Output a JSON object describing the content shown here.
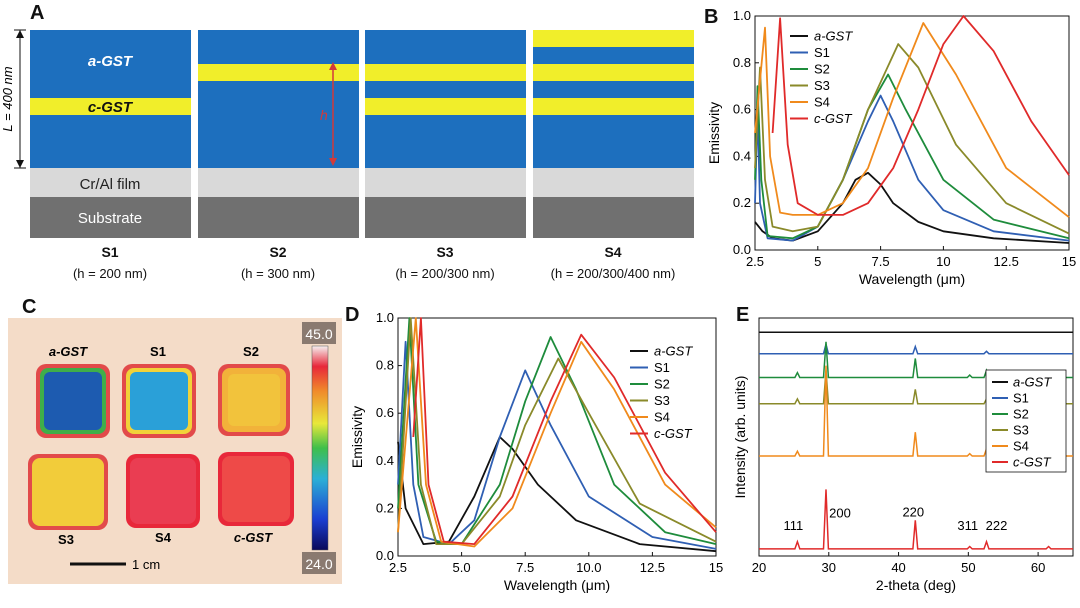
{
  "panels": {
    "a": "A",
    "b": "B",
    "c": "C",
    "d": "D",
    "e": "E"
  },
  "panel_a": {
    "layer_labels": {
      "a_gst": "a-GST",
      "c_gst": "c-GST",
      "film": "Cr/Al film",
      "substrate": "Substrate"
    },
    "thickness_label": "L = 400 nm",
    "h_label": "h",
    "colors": {
      "gst_a": "#1d6fbe",
      "gst_c": "#f1ee2a",
      "film": "#d9d9d9",
      "substrate": "#707070"
    },
    "samples": [
      {
        "name": "S1",
        "h": "(h = 200 nm)"
      },
      {
        "name": "S2",
        "h": "(h = 300 nm)"
      },
      {
        "name": "S3",
        "h": "(h = 200/300 nm)"
      },
      {
        "name": "S4",
        "h": "(h = 200/300/400 nm)"
      }
    ]
  },
  "panel_c": {
    "labels": [
      "a-GST",
      "S1",
      "S2",
      "S3",
      "S4",
      "c-GST"
    ],
    "scale_max": "45.0",
    "scale_min": "24.0",
    "scalebar": "1 cm"
  },
  "chart_data": [
    {
      "id": "B",
      "type": "line",
      "xlabel": "Wavelength (μm)",
      "ylabel": "Emissivity",
      "xlim": [
        2.5,
        15
      ],
      "ylim": [
        0,
        1
      ],
      "xticks": [
        "2.5",
        "5",
        "7.5",
        "10",
        "12.5",
        "15"
      ],
      "yticks": [
        "0.0",
        "0.2",
        "0.4",
        "0.6",
        "0.8",
        "1.0"
      ],
      "legend_position": "top-right",
      "series": [
        {
          "name": "a-GST",
          "color": "#111111",
          "points": [
            [
              2.5,
              0.12
            ],
            [
              2.8,
              0.08
            ],
            [
              3.2,
              0.05
            ],
            [
              4,
              0.04
            ],
            [
              5,
              0.08
            ],
            [
              6,
              0.2
            ],
            [
              6.5,
              0.3
            ],
            [
              7,
              0.33
            ],
            [
              7.5,
              0.28
            ],
            [
              8,
              0.2
            ],
            [
              9,
              0.12
            ],
            [
              10,
              0.08
            ],
            [
              12,
              0.05
            ],
            [
              15,
              0.03
            ]
          ]
        },
        {
          "name": "S1",
          "color": "#2f5fb3",
          "points": [
            [
              2.5,
              0.2
            ],
            [
              2.6,
              0.6
            ],
            [
              2.7,
              0.2
            ],
            [
              3,
              0.05
            ],
            [
              4,
              0.04
            ],
            [
              5,
              0.1
            ],
            [
              6,
              0.3
            ],
            [
              7,
              0.55
            ],
            [
              7.5,
              0.66
            ],
            [
              8,
              0.55
            ],
            [
              9,
              0.3
            ],
            [
              10,
              0.17
            ],
            [
              12,
              0.08
            ],
            [
              15,
              0.04
            ]
          ]
        },
        {
          "name": "S2",
          "color": "#1e8c3c",
          "points": [
            [
              2.5,
              0.3
            ],
            [
              2.6,
              0.7
            ],
            [
              2.75,
              0.3
            ],
            [
              3,
              0.06
            ],
            [
              4,
              0.05
            ],
            [
              5,
              0.1
            ],
            [
              6,
              0.3
            ],
            [
              7,
              0.6
            ],
            [
              7.8,
              0.75
            ],
            [
              8.5,
              0.6
            ],
            [
              10,
              0.3
            ],
            [
              12,
              0.13
            ],
            [
              15,
              0.05
            ]
          ]
        },
        {
          "name": "S3",
          "color": "#8a8a2a",
          "points": [
            [
              2.5,
              0.35
            ],
            [
              2.7,
              0.78
            ],
            [
              2.9,
              0.3
            ],
            [
              3.2,
              0.1
            ],
            [
              4,
              0.08
            ],
            [
              5,
              0.1
            ],
            [
              6,
              0.3
            ],
            [
              7,
              0.6
            ],
            [
              8.2,
              0.88
            ],
            [
              9,
              0.78
            ],
            [
              10.5,
              0.45
            ],
            [
              12.5,
              0.2
            ],
            [
              15,
              0.07
            ]
          ]
        },
        {
          "name": "S4",
          "color": "#f08a1c",
          "points": [
            [
              2.5,
              0.5
            ],
            [
              2.9,
              0.95
            ],
            [
              3.1,
              0.4
            ],
            [
              3.5,
              0.16
            ],
            [
              4,
              0.15
            ],
            [
              5,
              0.15
            ],
            [
              6,
              0.2
            ],
            [
              7,
              0.35
            ],
            [
              8,
              0.65
            ],
            [
              9.2,
              0.97
            ],
            [
              10.5,
              0.75
            ],
            [
              12.5,
              0.35
            ],
            [
              15,
              0.14
            ]
          ]
        },
        {
          "name": "c-GST",
          "color": "#e02a2a",
          "points": [
            [
              3.2,
              0.5
            ],
            [
              3.5,
              0.99
            ],
            [
              3.8,
              0.45
            ],
            [
              4.2,
              0.2
            ],
            [
              5,
              0.15
            ],
            [
              6,
              0.15
            ],
            [
              7,
              0.2
            ],
            [
              8,
              0.35
            ],
            [
              9,
              0.6
            ],
            [
              10,
              0.88
            ],
            [
              10.8,
              1.0
            ],
            [
              12,
              0.85
            ],
            [
              13.5,
              0.55
            ],
            [
              15,
              0.32
            ]
          ]
        }
      ]
    },
    {
      "id": "D",
      "type": "line",
      "xlabel": "Wavelength (μm)",
      "ylabel": "Emissivity",
      "xlim": [
        2.5,
        15
      ],
      "ylim": [
        0,
        1
      ],
      "xticks": [
        "2.5",
        "5.0",
        "7.5",
        "10.0",
        "12.5",
        "15"
      ],
      "yticks": [
        "0.0",
        "0.2",
        "0.4",
        "0.6",
        "0.8",
        "1.0"
      ],
      "legend_position": "right",
      "series": [
        {
          "name": "a-GST",
          "color": "#111111",
          "points": [
            [
              2.5,
              0.48
            ],
            [
              2.8,
              0.2
            ],
            [
              3.5,
              0.05
            ],
            [
              4.5,
              0.06
            ],
            [
              5.5,
              0.25
            ],
            [
              6.5,
              0.5
            ],
            [
              7,
              0.45
            ],
            [
              8,
              0.3
            ],
            [
              9.5,
              0.15
            ],
            [
              12,
              0.05
            ],
            [
              15,
              0.02
            ]
          ]
        },
        {
          "name": "S1",
          "color": "#2f5fb3",
          "points": [
            [
              2.5,
              0.3
            ],
            [
              2.8,
              0.9
            ],
            [
              3.1,
              0.3
            ],
            [
              3.5,
              0.08
            ],
            [
              4.5,
              0.05
            ],
            [
              5.5,
              0.15
            ],
            [
              6.5,
              0.5
            ],
            [
              7.5,
              0.78
            ],
            [
              8.5,
              0.55
            ],
            [
              10,
              0.25
            ],
            [
              12.5,
              0.08
            ],
            [
              15,
              0.03
            ]
          ]
        },
        {
          "name": "S2",
          "color": "#1e8c3c",
          "points": [
            [
              2.5,
              0.2
            ],
            [
              2.95,
              1.0
            ],
            [
              3.3,
              0.3
            ],
            [
              4,
              0.06
            ],
            [
              5,
              0.05
            ],
            [
              6.5,
              0.3
            ],
            [
              7.5,
              0.65
            ],
            [
              8.5,
              0.92
            ],
            [
              9.5,
              0.7
            ],
            [
              11,
              0.3
            ],
            [
              13,
              0.1
            ],
            [
              15,
              0.05
            ]
          ]
        },
        {
          "name": "S3",
          "color": "#8a8a2a",
          "points": [
            [
              2.5,
              0.1
            ],
            [
              3.0,
              1.0
            ],
            [
              3.4,
              0.3
            ],
            [
              4,
              0.05
            ],
            [
              5,
              0.05
            ],
            [
              6.5,
              0.25
            ],
            [
              7.5,
              0.55
            ],
            [
              8.8,
              0.83
            ],
            [
              10,
              0.6
            ],
            [
              12,
              0.22
            ],
            [
              15,
              0.06
            ]
          ]
        },
        {
          "name": "S4",
          "color": "#f08a1c",
          "points": [
            [
              2.5,
              0.1
            ],
            [
              3.2,
              1.0
            ],
            [
              3.6,
              0.3
            ],
            [
              4.2,
              0.06
            ],
            [
              5.5,
              0.04
            ],
            [
              7,
              0.2
            ],
            [
              8.5,
              0.6
            ],
            [
              9.7,
              0.9
            ],
            [
              11,
              0.7
            ],
            [
              13,
              0.3
            ],
            [
              15,
              0.12
            ]
          ]
        },
        {
          "name": "c-GST",
          "color": "#e02a2a",
          "points": [
            [
              3.1,
              0.5
            ],
            [
              3.4,
              1.0
            ],
            [
              3.7,
              0.3
            ],
            [
              4.3,
              0.06
            ],
            [
              5.5,
              0.05
            ],
            [
              7,
              0.25
            ],
            [
              8.5,
              0.65
            ],
            [
              9.7,
              0.93
            ],
            [
              11,
              0.75
            ],
            [
              13,
              0.35
            ],
            [
              15,
              0.1
            ]
          ]
        }
      ]
    },
    {
      "id": "E",
      "type": "line",
      "xlabel": "2-theta (deg)",
      "ylabel": "Intensity (arb. units)",
      "xlim": [
        20,
        65
      ],
      "xticks": [
        "20",
        "30",
        "40",
        "50",
        "60"
      ],
      "legend_position": "right",
      "peak_labels": [
        {
          "label": "111",
          "x": 25.5
        },
        {
          "label": "200",
          "x": 29.6
        },
        {
          "label": "220",
          "x": 42.4
        },
        {
          "label": "311",
          "x": 50.2
        },
        {
          "label": "222",
          "x": 52.6
        }
      ],
      "series": [
        {
          "name": "a-GST",
          "color": "#111111",
          "baseline": 0.94,
          "peaks": []
        },
        {
          "name": "S1",
          "color": "#2f5fb3",
          "baseline": 0.85,
          "peaks": [
            [
              29.6,
              0.04
            ],
            [
              42.4,
              0.03
            ],
            [
              52.6,
              0.01
            ]
          ]
        },
        {
          "name": "S2",
          "color": "#1e8c3c",
          "baseline": 0.75,
          "peaks": [
            [
              25.5,
              0.02
            ],
            [
              29.6,
              0.15
            ],
            [
              42.4,
              0.08
            ],
            [
              50.2,
              0.01
            ],
            [
              52.6,
              0.03
            ]
          ]
        },
        {
          "name": "S3",
          "color": "#8a8a2a",
          "baseline": 0.64,
          "peaks": [
            [
              25.5,
              0.02
            ],
            [
              29.6,
              0.14
            ],
            [
              42.4,
              0.06
            ],
            [
              52.6,
              0.02
            ]
          ]
        },
        {
          "name": "S4",
          "color": "#f08a1c",
          "baseline": 0.42,
          "peaks": [
            [
              25.5,
              0.02
            ],
            [
              29.6,
              0.38
            ],
            [
              42.4,
              0.1
            ],
            [
              50.2,
              0.01
            ],
            [
              52.6,
              0.03
            ],
            [
              61.5,
              0.01
            ]
          ]
        },
        {
          "name": "c-GST",
          "color": "#e02a2a",
          "baseline": 0.03,
          "peaks": [
            [
              25.5,
              0.03
            ],
            [
              29.6,
              0.25
            ],
            [
              42.4,
              0.12
            ],
            [
              50.2,
              0.01
            ],
            [
              52.6,
              0.03
            ],
            [
              61.5,
              0.01
            ]
          ]
        }
      ]
    }
  ]
}
